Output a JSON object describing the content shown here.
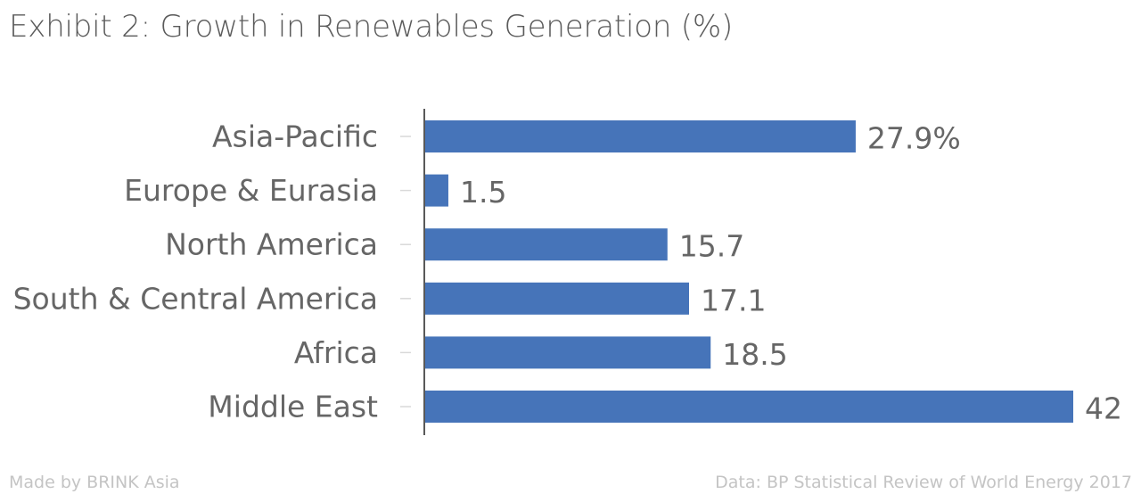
{
  "chart_data": {
    "type": "bar",
    "orientation": "horizontal",
    "title": "Exhibit 2: Growth in Renewables Generation (%)",
    "categories": [
      "Asia-Pacific",
      "Europe & Eurasia",
      "North America",
      "South & Central America",
      "Africa",
      "Middle East"
    ],
    "values": [
      27.9,
      1.5,
      15.7,
      17.1,
      18.5,
      42
    ],
    "data_labels": [
      "27.9%",
      "1.5",
      "15.7",
      "17.1",
      "18.5",
      "42"
    ],
    "xlim": [
      0,
      42
    ],
    "grid": false,
    "legend": "none",
    "bar_color": "#4674b9"
  },
  "footer": {
    "credit": "Made by BRINK Asia",
    "source": "Data: BP Statistical Review of World Energy 2017"
  }
}
